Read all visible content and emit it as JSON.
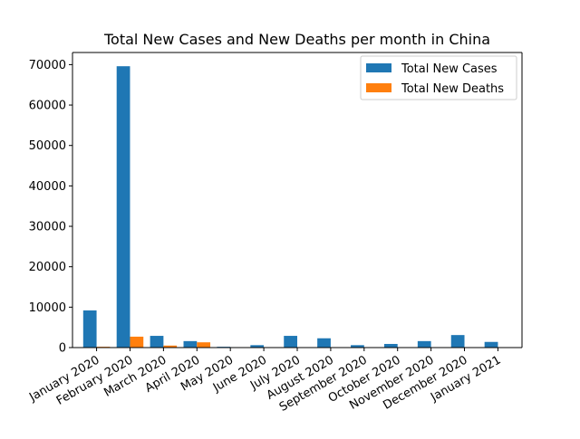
{
  "chart_data": {
    "type": "bar",
    "title": "Total New Cases and New Deaths per month in China",
    "xlabel": "",
    "ylabel": "",
    "categories": [
      "January 2020",
      "February 2020",
      "March 2020",
      "April 2020",
      "May 2020",
      "June 2020",
      "July 2020",
      "August 2020",
      "September 2020",
      "October 2020",
      "November 2020",
      "December 2020",
      "January 2021"
    ],
    "series": [
      {
        "name": "Total New Cases",
        "color": "#1f77b4",
        "values": [
          9200,
          69600,
          2900,
          1600,
          200,
          600,
          2900,
          2300,
          600,
          900,
          1600,
          3100,
          1400
        ]
      },
      {
        "name": "Total New Deaths",
        "color": "#ff7f0e",
        "values": [
          200,
          2700,
          500,
          1300,
          0,
          0,
          0,
          0,
          0,
          0,
          0,
          0,
          0
        ]
      }
    ],
    "ylim": [
      0,
      73000
    ],
    "yticks": [
      0,
      10000,
      20000,
      30000,
      40000,
      50000,
      60000,
      70000
    ],
    "ytick_labels": [
      "0",
      "10000",
      "20000",
      "30000",
      "40000",
      "50000",
      "60000",
      "70000"
    ],
    "grid": false,
    "legend_position": "upper right"
  }
}
